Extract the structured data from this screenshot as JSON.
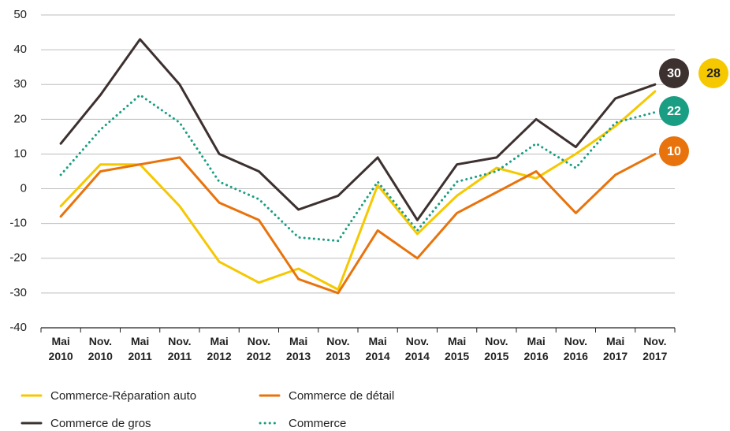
{
  "chart_data": {
    "type": "line",
    "categories": [
      "Mai 2010",
      "Nov. 2010",
      "Mai 2011",
      "Nov. 2011",
      "Mai 2012",
      "Nov. 2012",
      "Mai 2013",
      "Nov. 2013",
      "Mai 2014",
      "Nov. 2014",
      "Mai 2015",
      "Nov. 2015",
      "Mai 2016",
      "Nov. 2016",
      "Mai 2017",
      "Nov. 2017"
    ],
    "series": [
      {
        "name": "Commerce-Réparation auto",
        "color": "#f5c800",
        "values": [
          -5,
          7,
          7,
          -5,
          -21,
          -27,
          -23,
          -29,
          1,
          -13,
          -2,
          6,
          3,
          10,
          18,
          28
        ]
      },
      {
        "name": "Commerce de détail",
        "color": "#e8730c",
        "values": [
          -8,
          5,
          7,
          9,
          -4,
          -9,
          -26,
          -30,
          -12,
          -20,
          -7,
          -1,
          5,
          -7,
          4,
          10
        ]
      },
      {
        "name": "Commerce de gros",
        "color": "#3d3130",
        "values": [
          13,
          27,
          43,
          30,
          10,
          5,
          -6,
          -2,
          9,
          -9,
          7,
          9,
          20,
          12,
          26,
          30
        ]
      },
      {
        "name": "Commerce",
        "color": "#1a9e83",
        "dotted": true,
        "values": [
          4,
          17,
          27,
          19,
          2,
          -3,
          -14,
          -15,
          2,
          -12,
          2,
          5,
          13,
          6,
          19,
          22
        ]
      }
    ],
    "ylim": [
      -40,
      50
    ],
    "yticks": [
      -40,
      -30,
      -20,
      -10,
      0,
      10,
      20,
      30,
      40,
      50
    ],
    "grid": true
  }
}
